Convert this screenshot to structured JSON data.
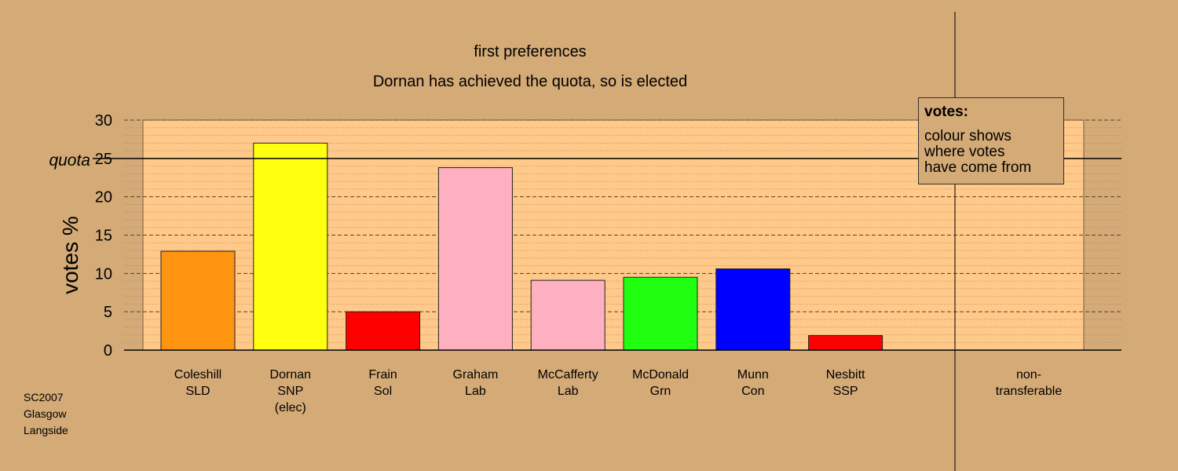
{
  "chart_data": {
    "type": "bar",
    "title": "first preferences",
    "subtitle": "Dornan has achieved the quota, so is elected",
    "ylabel": "votes %",
    "ylim": [
      0,
      30
    ],
    "yticks": [
      "0",
      "5",
      "10",
      "15",
      "20",
      "25",
      "30"
    ],
    "quota": {
      "label": "quota",
      "value": 25
    },
    "grid": true,
    "categories": [
      {
        "lines": [
          "Coleshill",
          "SLD"
        ]
      },
      {
        "lines": [
          "Dornan",
          "SNP",
          "(elec)"
        ]
      },
      {
        "lines": [
          "Frain",
          "Sol"
        ]
      },
      {
        "lines": [
          "Graham",
          "Lab"
        ]
      },
      {
        "lines": [
          "McCafferty",
          "Lab"
        ]
      },
      {
        "lines": [
          "McDonald",
          "Grn"
        ]
      },
      {
        "lines": [
          "Munn",
          "Con"
        ]
      },
      {
        "lines": [
          "Nesbitt",
          "SSP"
        ]
      },
      {
        "lines": [
          "non-",
          "transferable"
        ]
      }
    ],
    "values": [
      12.9,
      27.0,
      5.0,
      23.8,
      9.1,
      9.5,
      10.6,
      1.9,
      0
    ],
    "colors": [
      "#ff9410",
      "#ffff10",
      "#ff0000",
      "#ffb0c0",
      "#ffb0c0",
      "#20ff10",
      "#0000ff",
      "#ff0000",
      "#d4aa77"
    ],
    "legend": {
      "title": "votes:",
      "lines": [
        "colour shows",
        "where votes",
        "have come from"
      ],
      "position": "top-right"
    }
  },
  "footer": {
    "lines": [
      "SC2007",
      "Glasgow",
      "Langside"
    ]
  }
}
